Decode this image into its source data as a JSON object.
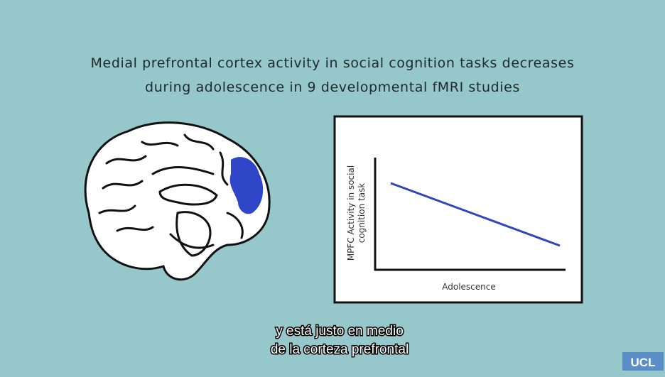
{
  "title": {
    "lines": [
      "Medial prefrontal cortex activity in social cognition tasks decreases",
      "during adolescence in 9 developmental fMRI studies"
    ]
  },
  "diagram": {
    "y_label_lines": [
      "MPFC Activity in social",
      "cognition task"
    ],
    "x_label": "Adolescence"
  },
  "subtitles": [
    "y está justo en medio",
    "de la corteza prefrontal"
  ],
  "logo": "UCL"
}
